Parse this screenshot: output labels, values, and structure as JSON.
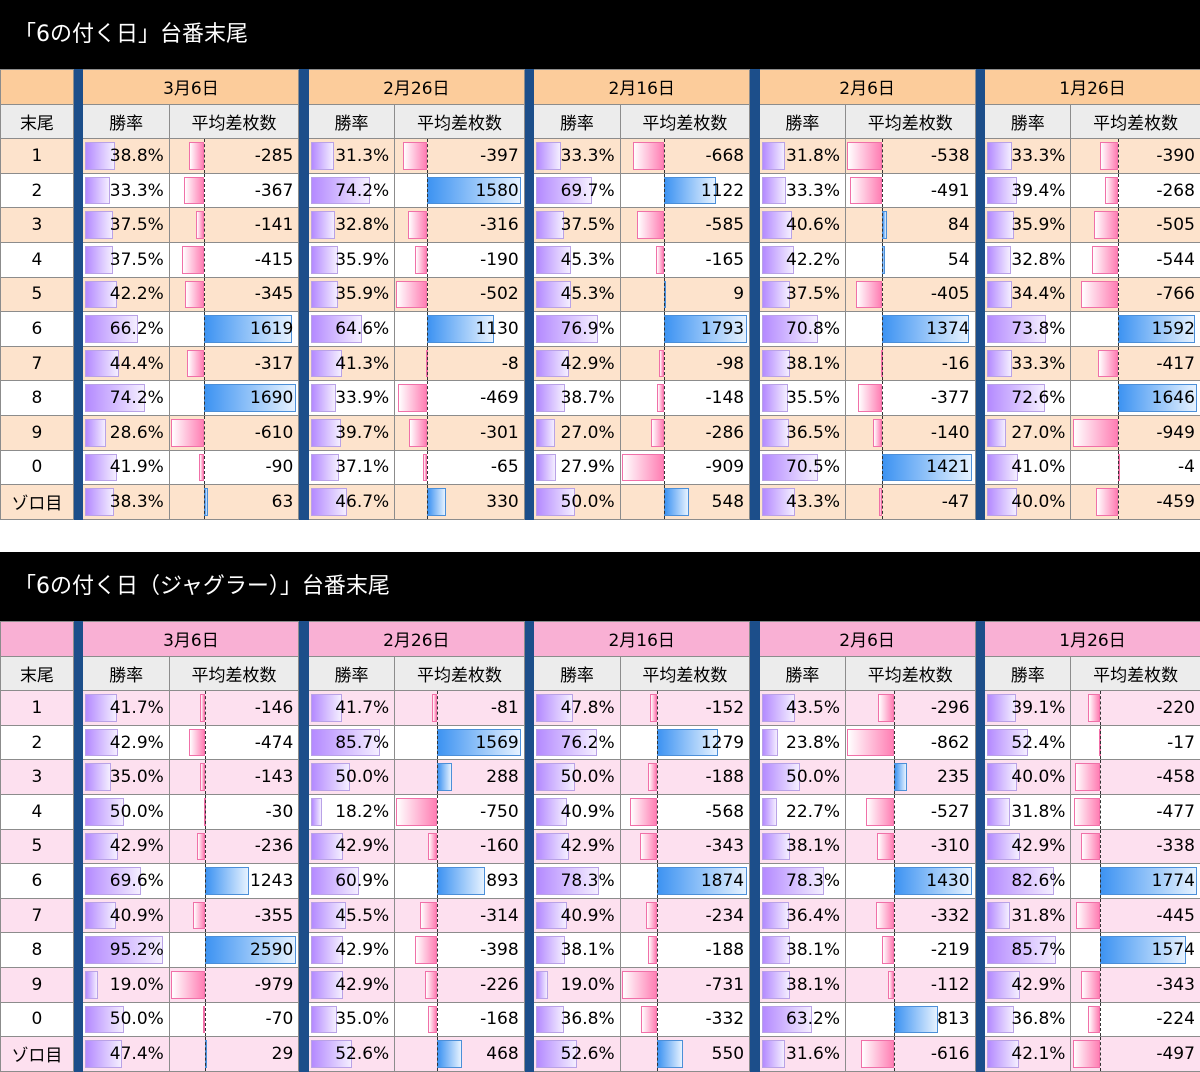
{
  "colors": {
    "banner": "#000000",
    "table1_header": "#fccc9b",
    "table1_stripe": "#fde3cc",
    "table2_header": "#f9b0d4",
    "table2_stripe": "#fde0ef",
    "separator": "#1c4e8a",
    "rate_bar": "#b48aff",
    "negative_bar": "#ff7fb4",
    "positive_bar": "#3d93f2"
  },
  "tables": [
    {
      "title": "「6の付く日」台番末尾",
      "header_label": "末尾",
      "col_rate": "勝率",
      "col_diff": "平均差枚数",
      "dates": [
        "3月6日",
        "2月26日",
        "2月16日",
        "2月6日",
        "1月26日"
      ],
      "rows": [
        {
          "label": "1",
          "cells": [
            [
              "38.8%",
              -285
            ],
            [
              "31.3%",
              -397
            ],
            [
              "33.3%",
              -668
            ],
            [
              "31.8%",
              -538
            ],
            [
              "33.3%",
              -390
            ]
          ]
        },
        {
          "label": "2",
          "cells": [
            [
              "33.3%",
              -367
            ],
            [
              "74.2%",
              1580
            ],
            [
              "69.7%",
              1122
            ],
            [
              "33.3%",
              -491
            ],
            [
              "39.4%",
              -268
            ]
          ]
        },
        {
          "label": "3",
          "cells": [
            [
              "37.5%",
              -141
            ],
            [
              "32.8%",
              -316
            ],
            [
              "37.5%",
              -585
            ],
            [
              "40.6%",
              84
            ],
            [
              "35.9%",
              -505
            ]
          ]
        },
        {
          "label": "4",
          "cells": [
            [
              "37.5%",
              -415
            ],
            [
              "35.9%",
              -190
            ],
            [
              "45.3%",
              -165
            ],
            [
              "42.2%",
              54
            ],
            [
              "32.8%",
              -544
            ]
          ]
        },
        {
          "label": "5",
          "cells": [
            [
              "42.2%",
              -345
            ],
            [
              "35.9%",
              -502
            ],
            [
              "45.3%",
              9
            ],
            [
              "37.5%",
              -405
            ],
            [
              "34.4%",
              -766
            ]
          ]
        },
        {
          "label": "6",
          "cells": [
            [
              "66.2%",
              1619
            ],
            [
              "64.6%",
              1130
            ],
            [
              "76.9%",
              1793
            ],
            [
              "70.8%",
              1374
            ],
            [
              "73.8%",
              1592
            ]
          ]
        },
        {
          "label": "7",
          "cells": [
            [
              "44.4%",
              -317
            ],
            [
              "41.3%",
              -8
            ],
            [
              "42.9%",
              -98
            ],
            [
              "38.1%",
              -16
            ],
            [
              "33.3%",
              -417
            ]
          ]
        },
        {
          "label": "8",
          "cells": [
            [
              "74.2%",
              1690
            ],
            [
              "33.9%",
              -469
            ],
            [
              "38.7%",
              -148
            ],
            [
              "35.5%",
              -377
            ],
            [
              "72.6%",
              1646
            ]
          ]
        },
        {
          "label": "9",
          "cells": [
            [
              "28.6%",
              -610
            ],
            [
              "39.7%",
              -301
            ],
            [
              "27.0%",
              -286
            ],
            [
              "36.5%",
              -140
            ],
            [
              "27.0%",
              -949
            ]
          ]
        },
        {
          "label": "0",
          "cells": [
            [
              "41.9%",
              -90
            ],
            [
              "37.1%",
              -65
            ],
            [
              "27.9%",
              -909
            ],
            [
              "70.5%",
              1421
            ],
            [
              "41.0%",
              -4
            ]
          ]
        },
        {
          "label": "ゾロ目",
          "cells": [
            [
              "38.3%",
              63
            ],
            [
              "46.7%",
              330
            ],
            [
              "50.0%",
              548
            ],
            [
              "43.3%",
              -47
            ],
            [
              "40.0%",
              -459
            ]
          ]
        }
      ]
    },
    {
      "title": "「6の付く日（ジャグラー）」台番末尾",
      "header_label": "末尾",
      "col_rate": "勝率",
      "col_diff": "平均差枚数",
      "dates": [
        "3月6日",
        "2月26日",
        "2月16日",
        "2月6日",
        "1月26日"
      ],
      "rows": [
        {
          "label": "1",
          "cells": [
            [
              "41.7%",
              -146
            ],
            [
              "41.7%",
              -81
            ],
            [
              "47.8%",
              -152
            ],
            [
              "43.5%",
              -296
            ],
            [
              "39.1%",
              -220
            ]
          ]
        },
        {
          "label": "2",
          "cells": [
            [
              "42.9%",
              -474
            ],
            [
              "85.7%",
              1569
            ],
            [
              "76.2%",
              1279
            ],
            [
              "23.8%",
              -862
            ],
            [
              "52.4%",
              -17
            ]
          ]
        },
        {
          "label": "3",
          "cells": [
            [
              "35.0%",
              -143
            ],
            [
              "50.0%",
              288
            ],
            [
              "50.0%",
              -188
            ],
            [
              "50.0%",
              235
            ],
            [
              "40.0%",
              -458
            ]
          ]
        },
        {
          "label": "4",
          "cells": [
            [
              "50.0%",
              -30
            ],
            [
              "18.2%",
              -750
            ],
            [
              "40.9%",
              -568
            ],
            [
              "22.7%",
              -527
            ],
            [
              "31.8%",
              -477
            ]
          ]
        },
        {
          "label": "5",
          "cells": [
            [
              "42.9%",
              -236
            ],
            [
              "42.9%",
              -160
            ],
            [
              "42.9%",
              -343
            ],
            [
              "38.1%",
              -310
            ],
            [
              "42.9%",
              -338
            ]
          ]
        },
        {
          "label": "6",
          "cells": [
            [
              "69.6%",
              1243
            ],
            [
              "60.9%",
              893
            ],
            [
              "78.3%",
              1874
            ],
            [
              "78.3%",
              1430
            ],
            [
              "82.6%",
              1774
            ]
          ]
        },
        {
          "label": "7",
          "cells": [
            [
              "40.9%",
              -355
            ],
            [
              "45.5%",
              -314
            ],
            [
              "40.9%",
              -234
            ],
            [
              "36.4%",
              -332
            ],
            [
              "31.8%",
              -445
            ]
          ]
        },
        {
          "label": "8",
          "cells": [
            [
              "95.2%",
              2590
            ],
            [
              "42.9%",
              -398
            ],
            [
              "38.1%",
              -188
            ],
            [
              "38.1%",
              -219
            ],
            [
              "85.7%",
              1574
            ]
          ]
        },
        {
          "label": "9",
          "cells": [
            [
              "19.0%",
              -979
            ],
            [
              "42.9%",
              -226
            ],
            [
              "19.0%",
              -731
            ],
            [
              "38.1%",
              -112
            ],
            [
              "42.9%",
              -343
            ]
          ]
        },
        {
          "label": "0",
          "cells": [
            [
              "50.0%",
              -70
            ],
            [
              "35.0%",
              -168
            ],
            [
              "36.8%",
              -332
            ],
            [
              "63.2%",
              813
            ],
            [
              "36.8%",
              -224
            ]
          ]
        },
        {
          "label": "ゾロ目",
          "cells": [
            [
              "47.4%",
              29
            ],
            [
              "52.6%",
              468
            ],
            [
              "52.6%",
              550
            ],
            [
              "31.6%",
              -616
            ],
            [
              "42.1%",
              -497
            ]
          ]
        }
      ]
    }
  ]
}
